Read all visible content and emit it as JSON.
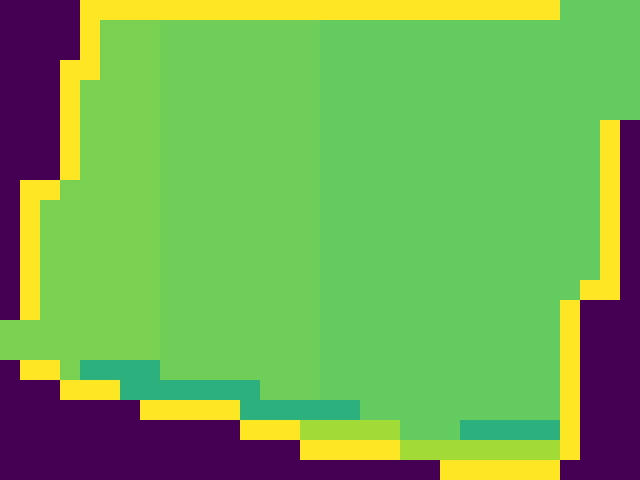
{
  "chart_data": {
    "type": "heatmap",
    "color": "viridis",
    "color_range": [
      0,
      1
    ],
    "tick_labels": false,
    "cells": [
      [
        0,
        0,
        0,
        0,
        1,
        1,
        1,
        1,
        1,
        1,
        1,
        1,
        1,
        1,
        1,
        1,
        1,
        1,
        1,
        1,
        1,
        1,
        1,
        1,
        1,
        1,
        1,
        1,
        0.76,
        0.76,
        0.76,
        0.76
      ],
      [
        0,
        0,
        0,
        0,
        1,
        0.8,
        0.8,
        0.8,
        0.78,
        0.78,
        0.78,
        0.78,
        0.78,
        0.78,
        0.78,
        0.78,
        0.76,
        0.76,
        0.76,
        0.76,
        0.76,
        0.76,
        0.76,
        0.76,
        0.76,
        0.76,
        0.76,
        0.76,
        0.76,
        0.76,
        0.76,
        0.76
      ],
      [
        0,
        0,
        0,
        0,
        1,
        0.8,
        0.8,
        0.8,
        0.78,
        0.78,
        0.78,
        0.78,
        0.78,
        0.78,
        0.78,
        0.78,
        0.76,
        0.76,
        0.76,
        0.76,
        0.76,
        0.76,
        0.76,
        0.76,
        0.76,
        0.76,
        0.76,
        0.76,
        0.76,
        0.76,
        0.76,
        0.76
      ],
      [
        0,
        0,
        0,
        1,
        1,
        0.8,
        0.8,
        0.8,
        0.78,
        0.78,
        0.78,
        0.78,
        0.78,
        0.78,
        0.78,
        0.78,
        0.76,
        0.76,
        0.76,
        0.76,
        0.76,
        0.76,
        0.76,
        0.76,
        0.76,
        0.76,
        0.76,
        0.76,
        0.76,
        0.76,
        0.76,
        0.76
      ],
      [
        0,
        0,
        0,
        1,
        0.8,
        0.8,
        0.8,
        0.8,
        0.78,
        0.78,
        0.78,
        0.78,
        0.78,
        0.78,
        0.78,
        0.78,
        0.76,
        0.76,
        0.76,
        0.76,
        0.76,
        0.76,
        0.76,
        0.76,
        0.76,
        0.76,
        0.76,
        0.76,
        0.76,
        0.76,
        0.76,
        0.76
      ],
      [
        0,
        0,
        0,
        1,
        0.8,
        0.8,
        0.8,
        0.8,
        0.78,
        0.78,
        0.78,
        0.78,
        0.78,
        0.78,
        0.78,
        0.78,
        0.76,
        0.76,
        0.76,
        0.76,
        0.76,
        0.76,
        0.76,
        0.76,
        0.76,
        0.76,
        0.76,
        0.76,
        0.76,
        0.76,
        0.76,
        0.76
      ],
      [
        0,
        0,
        0,
        1,
        0.8,
        0.8,
        0.8,
        0.8,
        0.78,
        0.78,
        0.78,
        0.78,
        0.78,
        0.78,
        0.78,
        0.78,
        0.76,
        0.76,
        0.76,
        0.76,
        0.76,
        0.76,
        0.76,
        0.76,
        0.76,
        0.76,
        0.76,
        0.76,
        0.76,
        0.76,
        1,
        0
      ],
      [
        0,
        0,
        0,
        1,
        0.8,
        0.8,
        0.8,
        0.8,
        0.78,
        0.78,
        0.78,
        0.78,
        0.78,
        0.78,
        0.78,
        0.78,
        0.76,
        0.76,
        0.76,
        0.76,
        0.76,
        0.76,
        0.76,
        0.76,
        0.76,
        0.76,
        0.76,
        0.76,
        0.76,
        0.76,
        1,
        0
      ],
      [
        0,
        0,
        0,
        1,
        0.8,
        0.8,
        0.8,
        0.8,
        0.78,
        0.78,
        0.78,
        0.78,
        0.78,
        0.78,
        0.78,
        0.78,
        0.76,
        0.76,
        0.76,
        0.76,
        0.76,
        0.76,
        0.76,
        0.76,
        0.76,
        0.76,
        0.76,
        0.76,
        0.76,
        0.76,
        1,
        0
      ],
      [
        0,
        1,
        1,
        0.8,
        0.8,
        0.8,
        0.8,
        0.8,
        0.78,
        0.78,
        0.78,
        0.78,
        0.78,
        0.78,
        0.78,
        0.78,
        0.76,
        0.76,
        0.76,
        0.76,
        0.76,
        0.76,
        0.76,
        0.76,
        0.76,
        0.76,
        0.76,
        0.76,
        0.76,
        0.76,
        1,
        0
      ],
      [
        0,
        1,
        0.8,
        0.8,
        0.8,
        0.8,
        0.8,
        0.8,
        0.78,
        0.78,
        0.78,
        0.78,
        0.78,
        0.78,
        0.78,
        0.78,
        0.76,
        0.76,
        0.76,
        0.76,
        0.76,
        0.76,
        0.76,
        0.76,
        0.76,
        0.76,
        0.76,
        0.76,
        0.76,
        0.76,
        1,
        0
      ],
      [
        0,
        1,
        0.8,
        0.8,
        0.8,
        0.8,
        0.8,
        0.8,
        0.78,
        0.78,
        0.78,
        0.78,
        0.78,
        0.78,
        0.78,
        0.78,
        0.76,
        0.76,
        0.76,
        0.76,
        0.76,
        0.76,
        0.76,
        0.76,
        0.76,
        0.76,
        0.76,
        0.76,
        0.76,
        0.76,
        1,
        0
      ],
      [
        0,
        1,
        0.8,
        0.8,
        0.8,
        0.8,
        0.8,
        0.8,
        0.78,
        0.78,
        0.78,
        0.78,
        0.78,
        0.78,
        0.78,
        0.78,
        0.76,
        0.76,
        0.76,
        0.76,
        0.76,
        0.76,
        0.76,
        0.76,
        0.76,
        0.76,
        0.76,
        0.76,
        0.76,
        0.76,
        1,
        0
      ],
      [
        0,
        1,
        0.8,
        0.8,
        0.8,
        0.8,
        0.8,
        0.8,
        0.78,
        0.78,
        0.78,
        0.78,
        0.78,
        0.78,
        0.78,
        0.78,
        0.76,
        0.76,
        0.76,
        0.76,
        0.76,
        0.76,
        0.76,
        0.76,
        0.76,
        0.76,
        0.76,
        0.76,
        0.76,
        0.76,
        1,
        0
      ],
      [
        0,
        1,
        0.8,
        0.8,
        0.8,
        0.8,
        0.8,
        0.8,
        0.78,
        0.78,
        0.78,
        0.78,
        0.78,
        0.78,
        0.78,
        0.78,
        0.76,
        0.76,
        0.76,
        0.76,
        0.76,
        0.76,
        0.76,
        0.76,
        0.76,
        0.76,
        0.76,
        0.76,
        0.76,
        1,
        1,
        0
      ],
      [
        0,
        1,
        0.8,
        0.8,
        0.8,
        0.8,
        0.8,
        0.8,
        0.78,
        0.78,
        0.78,
        0.78,
        0.78,
        0.78,
        0.78,
        0.78,
        0.76,
        0.76,
        0.76,
        0.76,
        0.76,
        0.76,
        0.76,
        0.76,
        0.76,
        0.76,
        0.76,
        0.76,
        1,
        0,
        0,
        0
      ],
      [
        0.8,
        0.8,
        0.8,
        0.8,
        0.8,
        0.8,
        0.8,
        0.8,
        0.78,
        0.78,
        0.78,
        0.78,
        0.78,
        0.78,
        0.78,
        0.78,
        0.76,
        0.76,
        0.76,
        0.76,
        0.76,
        0.76,
        0.76,
        0.76,
        0.76,
        0.76,
        0.76,
        0.76,
        1,
        0,
        0,
        0
      ],
      [
        0.8,
        0.8,
        0.8,
        0.8,
        0.8,
        0.8,
        0.8,
        0.8,
        0.78,
        0.78,
        0.78,
        0.78,
        0.78,
        0.78,
        0.78,
        0.78,
        0.76,
        0.76,
        0.76,
        0.76,
        0.76,
        0.76,
        0.76,
        0.76,
        0.76,
        0.76,
        0.76,
        0.76,
        1,
        0,
        0,
        0
      ],
      [
        0,
        1,
        1,
        0.8,
        0.64,
        0.64,
        0.64,
        0.64,
        0.78,
        0.78,
        0.78,
        0.78,
        0.78,
        0.78,
        0.78,
        0.78,
        0.76,
        0.76,
        0.76,
        0.76,
        0.76,
        0.76,
        0.76,
        0.76,
        0.76,
        0.76,
        0.76,
        0.76,
        1,
        0,
        0,
        0
      ],
      [
        0,
        0,
        0,
        1,
        1,
        1,
        0.64,
        0.64,
        0.64,
        0.64,
        0.64,
        0.64,
        0.64,
        0.78,
        0.78,
        0.78,
        0.76,
        0.76,
        0.76,
        0.76,
        0.76,
        0.76,
        0.76,
        0.76,
        0.76,
        0.76,
        0.76,
        0.76,
        1,
        0,
        0,
        0
      ],
      [
        0,
        0,
        0,
        0,
        0,
        0,
        0,
        1,
        1,
        1,
        1,
        1,
        0.64,
        0.64,
        0.64,
        0.64,
        0.64,
        0.64,
        0.76,
        0.76,
        0.76,
        0.76,
        0.76,
        0.76,
        0.76,
        0.76,
        0.76,
        0.76,
        1,
        0,
        0,
        0
      ],
      [
        0,
        0,
        0,
        0,
        0,
        0,
        0,
        0,
        0,
        0,
        0,
        0,
        1,
        1,
        1,
        0.86,
        0.86,
        0.86,
        0.86,
        0.86,
        0.76,
        0.76,
        0.76,
        0.64,
        0.64,
        0.64,
        0.64,
        0.64,
        1,
        0,
        0,
        0
      ],
      [
        0,
        0,
        0,
        0,
        0,
        0,
        0,
        0,
        0,
        0,
        0,
        0,
        0,
        0,
        0,
        1,
        1,
        1,
        1,
        1,
        0.86,
        0.86,
        0.86,
        0.86,
        0.86,
        0.86,
        0.86,
        0.86,
        1,
        0,
        0,
        0
      ],
      [
        0,
        0,
        0,
        0,
        0,
        0,
        0,
        0,
        0,
        0,
        0,
        0,
        0,
        0,
        0,
        0,
        0,
        0,
        0,
        0,
        0,
        0,
        1,
        1,
        1,
        1,
        1,
        1,
        0,
        0,
        0,
        0
      ]
    ]
  }
}
